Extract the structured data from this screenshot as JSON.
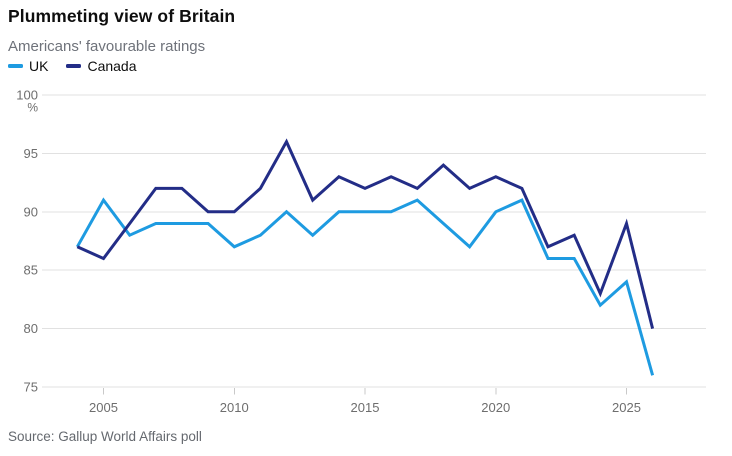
{
  "chart_data": {
    "type": "line",
    "title": "Plummeting view of Britain",
    "subtitle": "Americans' favourable ratings",
    "unit_label": "%",
    "x": [
      2004,
      2005,
      2006,
      2007,
      2008,
      2009,
      2010,
      2011,
      2012,
      2013,
      2014,
      2015,
      2016,
      2017,
      2018,
      2019,
      2020,
      2021,
      2022,
      2023,
      2024,
      2025,
      2026
    ],
    "series": [
      {
        "name": "UK",
        "color": "#1e9be1",
        "values": [
          87,
          91,
          88,
          89,
          89,
          89,
          87,
          88,
          90,
          88,
          90,
          90,
          90,
          91,
          89,
          87,
          90,
          91,
          86,
          86,
          82,
          84,
          76
        ]
      },
      {
        "name": "Canada",
        "color": "#232d87",
        "values": [
          87,
          86,
          89,
          92,
          92,
          90,
          90,
          92,
          96,
          91,
          93,
          92,
          93,
          92,
          94,
          92,
          93,
          92,
          87,
          88,
          83,
          89,
          80
        ]
      }
    ],
    "ylim": [
      75,
      100
    ],
    "yticks": [
      75,
      80,
      85,
      90,
      95,
      100
    ],
    "xticks": [
      2005,
      2010,
      2015,
      2020,
      2025
    ],
    "grid": "horizontal",
    "legend_position": "top-left"
  },
  "source": {
    "text": "Source: Gallup World Affairs poll"
  },
  "colors": {
    "gridline": "#e1e1e1",
    "tick_mark": "#c9c9c9",
    "axis_text": "#6e6e6e",
    "background": "#ffffff"
  }
}
